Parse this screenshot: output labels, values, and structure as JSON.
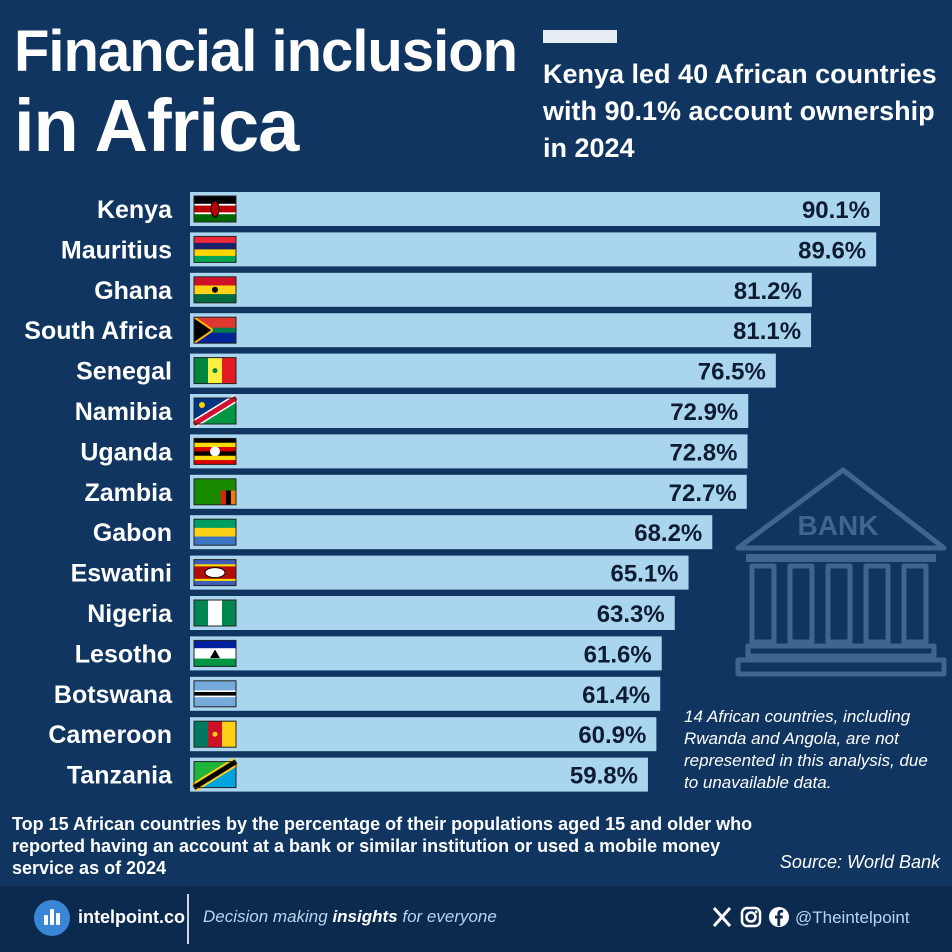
{
  "title_line1": "Financial inclusion",
  "title_line2": "in Africa",
  "subtitle": "Kenya led 40 African countries with 90.1% account ownership in 2024",
  "chart_data": {
    "type": "bar",
    "orientation": "horizontal",
    "categories": [
      "Kenya",
      "Mauritius",
      "Ghana",
      "South Africa",
      "Senegal",
      "Namibia",
      "Uganda",
      "Zambia",
      "Gabon",
      "Eswatini",
      "Nigeria",
      "Lesotho",
      "Botswana",
      "Cameroon",
      "Tanzania"
    ],
    "values": [
      90.1,
      89.6,
      81.2,
      81.1,
      76.5,
      72.9,
      72.8,
      72.7,
      68.2,
      65.1,
      63.3,
      61.6,
      61.4,
      60.9,
      59.8
    ],
    "value_labels": [
      "90.1%",
      "89.6%",
      "81.2%",
      "81.1%",
      "76.5%",
      "72.9%",
      "72.8%",
      "72.7%",
      "68.2%",
      "65.1%",
      "63.3%",
      "61.6%",
      "61.4%",
      "60.9%",
      "59.8%"
    ],
    "xlim": [
      0,
      100
    ],
    "grid": false,
    "bar_color": "#a9d5ef"
  },
  "bank_label": "BANK",
  "note": "14 African countries, including Rwanda and Angola, are not represented in this analysis, due to unavailable data.",
  "description": "Top 15 African countries by the percentage of their populations aged 15 and older who reported having an account at a bank or similar institution or used a mobile money service as of 2024",
  "source": "Source: World Bank",
  "footer": {
    "brand": "intelpoint.co",
    "tagline_pre": "Decision making ",
    "tagline_bold": "insights",
    "tagline_post": " for everyone",
    "handle": "@Theintelpoint",
    "icons": [
      "x-icon",
      "instagram-icon",
      "facebook-icon"
    ]
  },
  "colors": {
    "background": "#0f3560",
    "bar": "#a9d5ef",
    "footer": "#0b2a4d",
    "accent": "#3a86d6"
  }
}
